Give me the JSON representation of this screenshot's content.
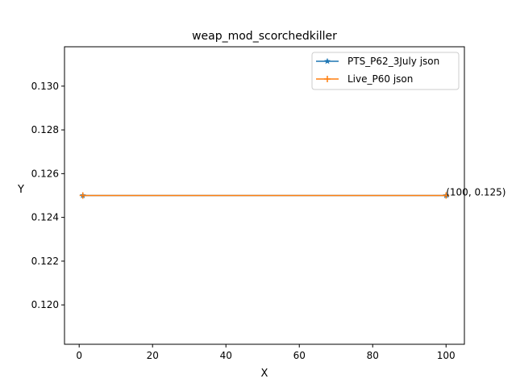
{
  "chart_data": {
    "type": "line",
    "title": "weap_mod_scorchedkiller",
    "xlabel": "X",
    "ylabel": "Y",
    "xlim": [
      -4,
      105
    ],
    "ylim": [
      0.1182,
      0.1318
    ],
    "xticks": [
      0,
      20,
      40,
      60,
      80,
      100
    ],
    "yticks": [
      0.12,
      0.122,
      0.124,
      0.126,
      0.128,
      0.13
    ],
    "ytick_labels": [
      "0.120",
      "0.122",
      "0.124",
      "0.126",
      "0.128",
      "0.130"
    ],
    "grid": false,
    "legend_position": "top-right",
    "series": [
      {
        "name": "PTS_P62_3July json",
        "color": "#1f77b4",
        "marker": "star",
        "x": [
          1,
          100
        ],
        "y": [
          0.125,
          0.125
        ]
      },
      {
        "name": "Live_P60 json",
        "color": "#ff7f0e",
        "marker": "plus",
        "x": [
          1,
          100
        ],
        "y": [
          0.125,
          0.125
        ]
      }
    ],
    "annotations": [
      {
        "text": "(100, 0.125)",
        "x": 100,
        "y": 0.125
      }
    ]
  }
}
